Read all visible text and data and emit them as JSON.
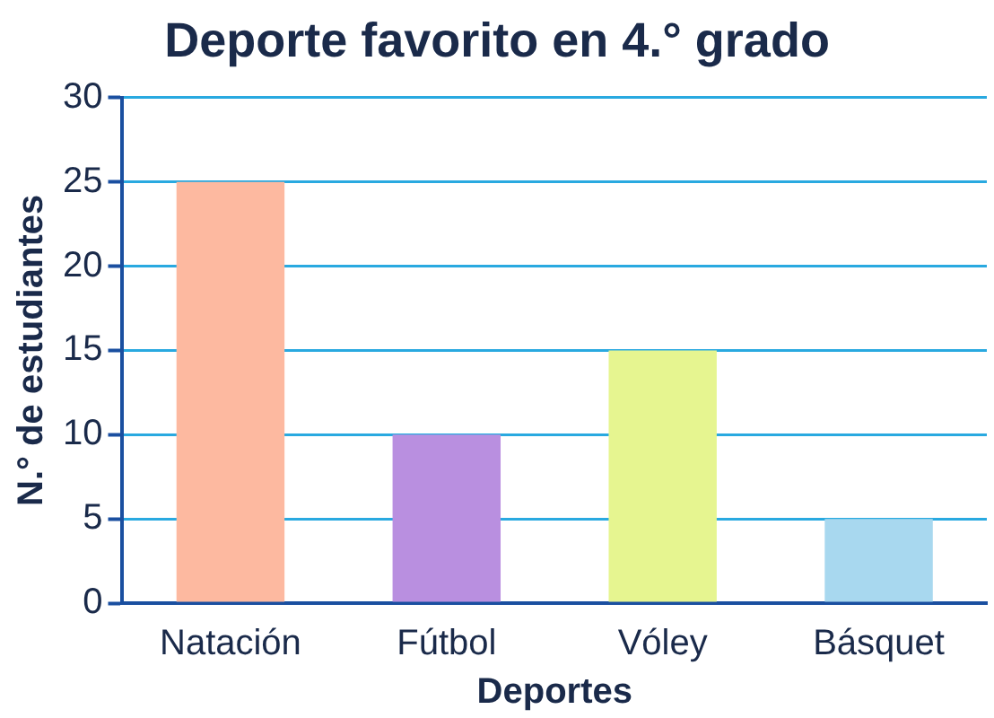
{
  "chart_data": {
    "type": "bar",
    "title": "Deporte favorito en 4.° grado",
    "xlabel": "Deportes",
    "ylabel": "N.° de estudiantes",
    "categories": [
      "Natación",
      "Fútbol",
      "Vóley",
      "Básquet"
    ],
    "values": [
      25,
      10,
      15,
      5
    ],
    "colors": [
      "#fdb9a0",
      "#b98fe0",
      "#e6f590",
      "#a8d8ef"
    ],
    "ylim": [
      0,
      30
    ],
    "yticks": [
      0,
      5,
      10,
      15,
      20,
      25,
      30
    ],
    "grid": "y",
    "legend": false
  }
}
